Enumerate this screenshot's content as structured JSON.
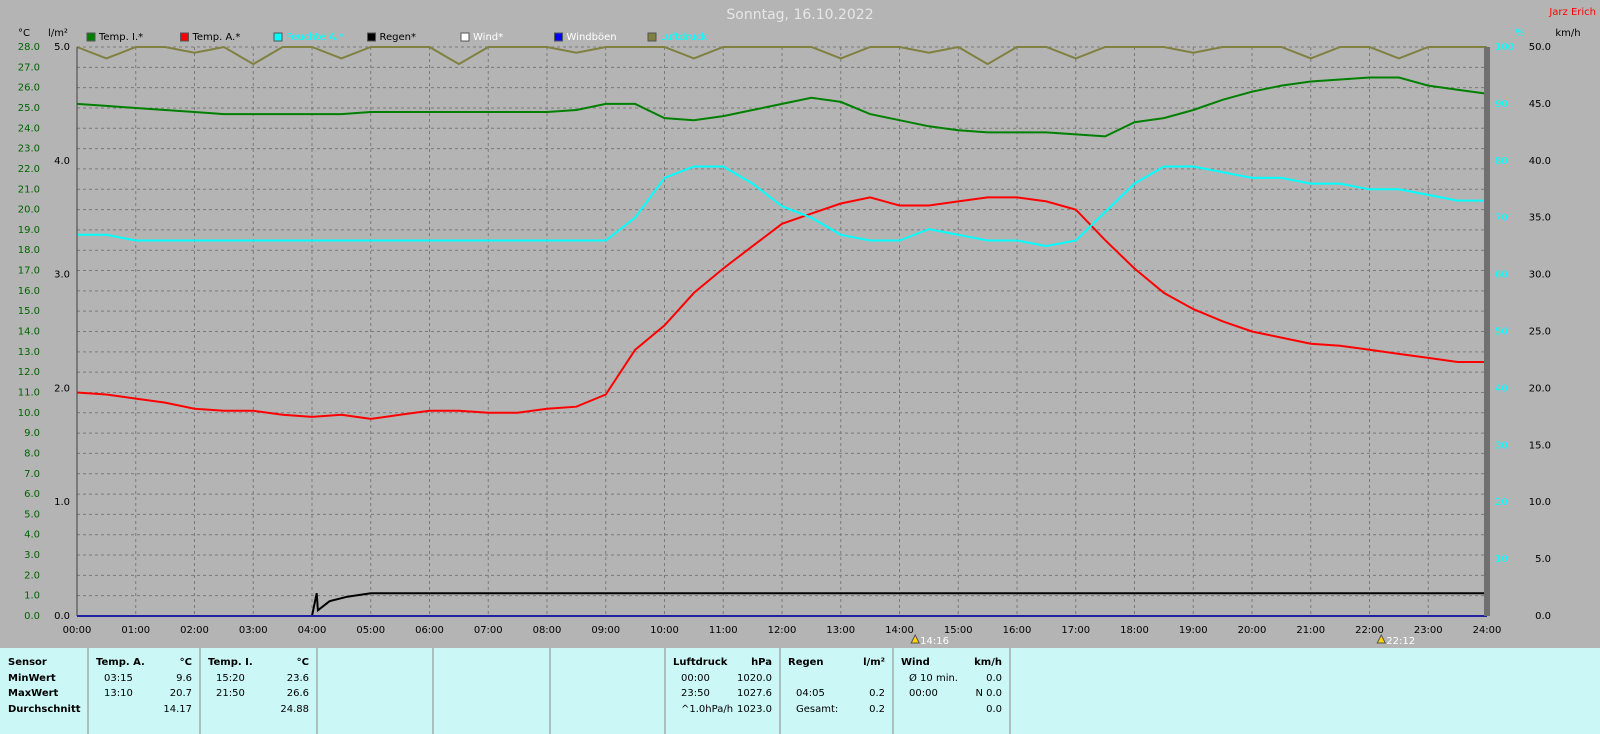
{
  "chart_data": {
    "type": "line",
    "title": "Sonntag, 16.10.2022",
    "author": "Jarz Erich",
    "y_unit": "°C",
    "y2_unit": "l/m²",
    "y3_unit": "%",
    "y4_unit": "km/h",
    "grid": true,
    "xlim": [
      0,
      24
    ],
    "xticks": [
      {
        "value": 0,
        "label": "00:00"
      },
      {
        "value": 1,
        "label": "01:00"
      },
      {
        "value": 2,
        "label": "02:00"
      },
      {
        "value": 3,
        "label": "03:00"
      },
      {
        "value": 4,
        "label": "04:00"
      },
      {
        "value": 5,
        "label": "05:00"
      },
      {
        "value": 6,
        "label": "06:00"
      },
      {
        "value": 7,
        "label": "07:00"
      },
      {
        "value": 8,
        "label": "08:00"
      },
      {
        "value": 9,
        "label": "09:00"
      },
      {
        "value": 10,
        "label": "10:00"
      },
      {
        "value": 11,
        "label": "11:00"
      },
      {
        "value": 12,
        "label": "12:00"
      },
      {
        "value": 13,
        "label": "13:00"
      },
      {
        "value": 14,
        "label": "14:00"
      },
      {
        "value": 15,
        "label": "15:00"
      },
      {
        "value": 16,
        "label": "16:00"
      },
      {
        "value": 17,
        "label": "17:00"
      },
      {
        "value": 18,
        "label": "18:00"
      },
      {
        "value": 19,
        "label": "19:00"
      },
      {
        "value": 20,
        "label": "20:00"
      },
      {
        "value": 21,
        "label": "21:00"
      },
      {
        "value": 22,
        "label": "22:00"
      },
      {
        "value": 23,
        "label": "23:00"
      },
      {
        "value": 24,
        "label": "24:00"
      }
    ],
    "ylim": [
      0,
      28
    ],
    "yticks": [
      {
        "value": 0,
        "label": "0.0"
      },
      {
        "value": 1,
        "label": "1.0"
      },
      {
        "value": 2,
        "label": "2.0"
      },
      {
        "value": 3,
        "label": "3.0"
      },
      {
        "value": 4,
        "label": "4.0"
      },
      {
        "value": 5,
        "label": "5.0"
      },
      {
        "value": 6,
        "label": "6.0"
      },
      {
        "value": 7,
        "label": "7.0"
      },
      {
        "value": 8,
        "label": "8.0"
      },
      {
        "value": 9,
        "label": "9.0"
      },
      {
        "value": 10,
        "label": "10.0"
      },
      {
        "value": 11,
        "label": "11.0"
      },
      {
        "value": 12,
        "label": "12.0"
      },
      {
        "value": 13,
        "label": "13.0"
      },
      {
        "value": 14,
        "label": "14.0"
      },
      {
        "value": 15,
        "label": "15.0"
      },
      {
        "value": 16,
        "label": "16.0"
      },
      {
        "value": 17,
        "label": "17.0"
      },
      {
        "value": 18,
        "label": "18.0"
      },
      {
        "value": 19,
        "label": "19.0"
      },
      {
        "value": 20,
        "label": "20.0"
      },
      {
        "value": 21,
        "label": "21.0"
      },
      {
        "value": 22,
        "label": "22.0"
      },
      {
        "value": 23,
        "label": "23.0"
      },
      {
        "value": 24,
        "label": "24.0"
      },
      {
        "value": 25,
        "label": "25.0"
      },
      {
        "value": 26,
        "label": "26.0"
      },
      {
        "value": 27,
        "label": "27.0"
      },
      {
        "value": 28,
        "label": "28.0"
      }
    ],
    "y2lim": [
      0,
      5
    ],
    "y2ticks": [
      {
        "value": 0,
        "label": "0.0"
      },
      {
        "value": 1,
        "label": "1.0"
      },
      {
        "value": 2,
        "label": "2.0"
      },
      {
        "value": 3,
        "label": "3.0"
      },
      {
        "value": 4,
        "label": "4.0"
      },
      {
        "value": 5,
        "label": "5.0"
      }
    ],
    "y3lim": [
      0,
      100
    ],
    "y3ticks": [
      10,
      20,
      30,
      40,
      50,
      60,
      70,
      80,
      90,
      100
    ],
    "y4lim": [
      0,
      50
    ],
    "y4ticks": [
      {
        "value": 0,
        "label": "0.0"
      },
      {
        "value": 5,
        "label": "5.0"
      },
      {
        "value": 10,
        "label": "10.0"
      },
      {
        "value": 15,
        "label": "15.0"
      },
      {
        "value": 20,
        "label": "20.0"
      },
      {
        "value": 25,
        "label": "25.0"
      },
      {
        "value": 30,
        "label": "30.0"
      },
      {
        "value": 35,
        "label": "35.0"
      },
      {
        "value": 40,
        "label": "40.0"
      },
      {
        "value": 45,
        "label": "45.0"
      },
      {
        "value": 50,
        "label": "50.0"
      }
    ],
    "x": [
      0,
      0.5,
      1,
      1.5,
      2,
      2.5,
      3,
      3.5,
      4,
      4.5,
      5,
      5.5,
      6,
      6.5,
      7,
      7.5,
      8,
      8.5,
      9,
      9.5,
      10,
      10.5,
      11,
      11.5,
      12,
      12.5,
      13,
      13.5,
      14,
      14.5,
      15,
      15.5,
      16,
      16.5,
      17,
      17.5,
      18,
      18.5,
      19,
      19.5,
      20,
      20.5,
      21,
      21.5,
      22,
      22.5,
      23,
      23.5,
      24
    ],
    "series": [
      {
        "name": "Temp. I.*",
        "color": "#008000",
        "label_color": "#000000",
        "axis": "y",
        "values": [
          25.2,
          25.1,
          25.0,
          24.9,
          24.8,
          24.7,
          24.7,
          24.7,
          24.7,
          24.7,
          24.8,
          24.8,
          24.8,
          24.8,
          24.8,
          24.8,
          24.8,
          24.9,
          25.2,
          25.2,
          24.5,
          24.4,
          24.6,
          24.9,
          25.2,
          25.5,
          25.3,
          24.7,
          24.4,
          24.1,
          23.9,
          23.8,
          23.8,
          23.8,
          23.7,
          23.6,
          24.3,
          24.5,
          24.9,
          25.4,
          25.8,
          26.1,
          26.3,
          26.4,
          26.5,
          26.5,
          26.1,
          25.9,
          25.7
        ]
      },
      {
        "name": "Temp. A.*",
        "color": "#ff0000",
        "label_color": "#000000",
        "axis": "y",
        "values": [
          11.0,
          10.9,
          10.7,
          10.5,
          10.2,
          10.1,
          10.1,
          9.9,
          9.8,
          9.9,
          9.7,
          9.9,
          10.1,
          10.1,
          10.0,
          10.0,
          10.2,
          10.3,
          10.9,
          13.1,
          14.3,
          15.9,
          17.1,
          18.2,
          19.3,
          19.8,
          20.3,
          20.6,
          20.2,
          20.2,
          20.4,
          20.6,
          20.6,
          20.4,
          20.0,
          18.5,
          17.1,
          15.9,
          15.1,
          14.5,
          14.0,
          13.7,
          13.4,
          13.3,
          13.1,
          12.9,
          12.7,
          12.5,
          12.5
        ]
      },
      {
        "name": "Feuchte A.*",
        "color": "#00ffff",
        "label_color": "#00ffff",
        "axis": "y3",
        "values": [
          67,
          67,
          66,
          66,
          66,
          66,
          66,
          66,
          66,
          66,
          66,
          66,
          66,
          66,
          66,
          66,
          66,
          66,
          66,
          70,
          77,
          79,
          79,
          76,
          72,
          70,
          67,
          66,
          66,
          68,
          67,
          66,
          66,
          65,
          66,
          71,
          76,
          79,
          79,
          78,
          77,
          77,
          76,
          76,
          75,
          75,
          74,
          73,
          73
        ]
      },
      {
        "name": "Regen*",
        "color": "#000000",
        "label_color": "#000000",
        "axis": "y2",
        "x": [
          0,
          4.0,
          4.08,
          4.1,
          4.3,
          4.6,
          5,
          24
        ],
        "values": [
          0,
          0,
          0.2,
          0.05,
          0.13,
          0.17,
          0.2,
          0.2
        ]
      },
      {
        "name": "Wind*",
        "color": "#ffffff",
        "label_color": "#ffffff",
        "axis": "y4",
        "x": [
          0,
          24
        ],
        "values": [
          0,
          0
        ]
      },
      {
        "name": "Windböen",
        "color": "#0000ff",
        "label_color": "#ffffff",
        "axis": "y4",
        "x": [
          0,
          24
        ],
        "values": [
          0,
          0
        ]
      },
      {
        "name": "Luftdruck",
        "color": "#808040",
        "label_color": "#00ffff",
        "axis": "y3",
        "values": [
          100,
          98,
          100,
          100,
          99,
          100,
          97,
          100,
          100,
          98,
          100,
          100,
          100,
          97,
          100,
          100,
          100,
          99,
          100,
          100,
          100,
          98,
          100,
          100,
          100,
          100,
          98,
          100,
          100,
          99,
          100,
          97,
          100,
          100,
          98,
          100,
          100,
          100,
          99,
          100,
          100,
          100,
          98,
          100,
          100,
          98,
          100,
          100,
          100
        ]
      }
    ],
    "annotations": [
      {
        "x": 14.267,
        "text": "14:16"
      },
      {
        "x": 22.2,
        "text": "22:12"
      }
    ]
  },
  "table": {
    "sections": [
      {
        "header": [
          "Sensor"
        ],
        "rows": [
          [
            "MinWert"
          ],
          [
            "MaxWert"
          ],
          [
            "Durchschnitt"
          ]
        ]
      },
      {
        "header": [
          "Temp. A.",
          "°C"
        ],
        "rows": [
          [
            "03:15",
            "9.6"
          ],
          [
            "13:10",
            "20.7"
          ],
          [
            null,
            "14.17"
          ]
        ]
      },
      {
        "header": [
          "Temp. I.",
          "°C"
        ],
        "rows": [
          [
            "15:20",
            "23.6"
          ],
          [
            "21:50",
            "26.6"
          ],
          [
            null,
            "24.88"
          ]
        ]
      },
      {
        "header": [
          "Luftdruck",
          "hPa"
        ],
        "rows": [
          [
            "00:00",
            "1020.0"
          ],
          [
            "23:50",
            "1027.6"
          ],
          [
            "^1.0hPa/h",
            "1023.0"
          ]
        ]
      },
      {
        "header": [
          "Regen",
          "l/m²"
        ],
        "rows": [
          [
            null,
            null
          ],
          [
            "04:05",
            "0.2"
          ],
          [
            "Gesamt:",
            "0.2"
          ]
        ]
      },
      {
        "header": [
          "Wind",
          "km/h"
        ],
        "rows": [
          [
            "Ø 10 min.",
            "0.0"
          ],
          [
            "00:00",
            "N 0.0"
          ],
          [
            null,
            "0.0"
          ]
        ]
      }
    ]
  }
}
